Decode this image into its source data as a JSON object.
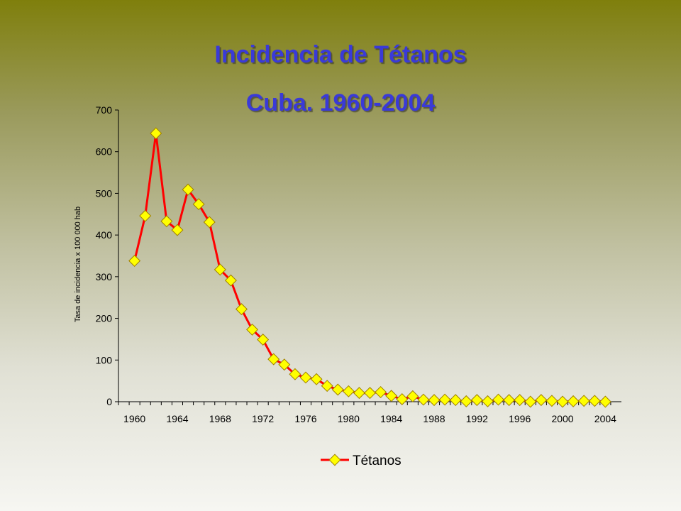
{
  "slide": {
    "title_line1": "Incidencia de Tétanos",
    "title_line2": "Cuba. 1960-2004"
  },
  "colors": {
    "title": "#3a3ad8",
    "line": "#ff0000",
    "marker_fill": "#ffff00",
    "marker_stroke": "#a08000"
  },
  "chart_data": {
    "type": "line",
    "ylabel": "Tasa de incidencia x 100 000 hab",
    "xlabel": "",
    "ylim": [
      0,
      700
    ],
    "yticks": [
      0,
      100,
      200,
      300,
      400,
      500,
      600,
      700
    ],
    "xticks": [
      1960,
      1964,
      1968,
      1972,
      1976,
      1980,
      1984,
      1988,
      1992,
      1996,
      2000,
      2004
    ],
    "x": [
      1960,
      1961,
      1962,
      1963,
      1964,
      1965,
      1966,
      1967,
      1968,
      1969,
      1970,
      1971,
      1972,
      1973,
      1974,
      1975,
      1976,
      1977,
      1978,
      1979,
      1980,
      1981,
      1982,
      1983,
      1984,
      1985,
      1986,
      1987,
      1988,
      1989,
      1990,
      1991,
      1992,
      1993,
      1994,
      1995,
      1996,
      1997,
      1998,
      1999,
      2000,
      2001,
      2002,
      2003,
      2004
    ],
    "series": [
      {
        "name": "Tétanos",
        "values": [
          338,
          446,
          644,
          433,
          412,
          509,
          474,
          431,
          317,
          291,
          222,
          173,
          149,
          102,
          89,
          66,
          58,
          54,
          38,
          29,
          25,
          21,
          21,
          23,
          14,
          6,
          13,
          5,
          4,
          5,
          4,
          1,
          4,
          1,
          5,
          4,
          4,
          0,
          4,
          2,
          0,
          1,
          2,
          2,
          0
        ]
      }
    ],
    "legend": "bottom",
    "grid": false
  }
}
